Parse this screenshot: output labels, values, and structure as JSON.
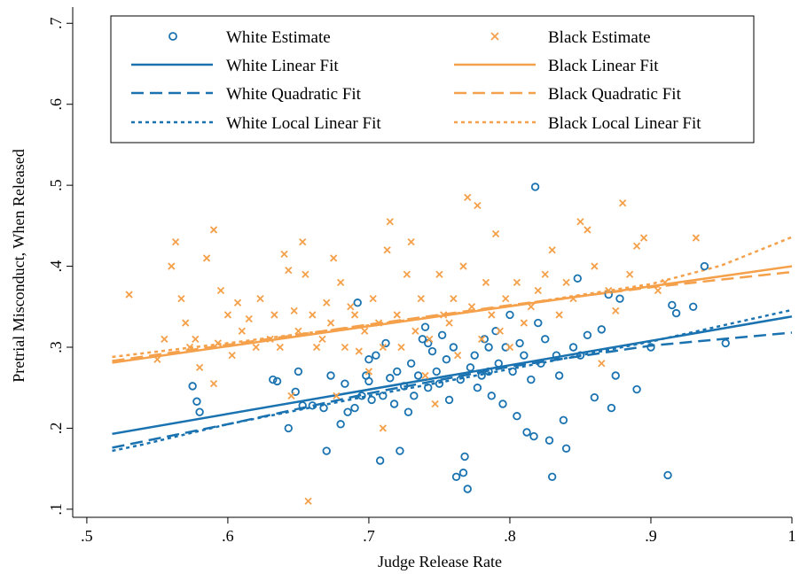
{
  "chart_data": {
    "type": "scatter",
    "title": "",
    "xlabel": "Judge Release Rate",
    "ylabel": "Pretrial Misconduct, When Released",
    "xlim": [
      0.49,
      1.0
    ],
    "ylim": [
      0.09,
      0.72
    ],
    "x_ticks": [
      0.5,
      0.6,
      0.7,
      0.8,
      0.9,
      1.0
    ],
    "x_tick_labels": [
      ".5",
      ".6",
      ".7",
      ".8",
      ".9",
      "1"
    ],
    "y_ticks": [
      0.1,
      0.2,
      0.3,
      0.4,
      0.5,
      0.6,
      0.7
    ],
    "y_tick_labels": [
      ".1",
      ".2",
      ".3",
      ".4",
      ".5",
      ".6",
      ".7"
    ],
    "grid": false,
    "legend_placement": "top",
    "colors": {
      "white": "#1a73b0",
      "black": "#f5a04a"
    },
    "legend": [
      "White Estimate",
      "Black Estimate",
      "White Linear Fit",
      "Black Linear Fit",
      "White Quadratic Fit",
      "Black Quadratic Fit",
      "White Local Linear Fit",
      "Black Local Linear Fit"
    ],
    "scatter_white": {
      "name": "White Estimate",
      "points": [
        [
          0.575,
          0.252
        ],
        [
          0.578,
          0.233
        ],
        [
          0.58,
          0.22
        ],
        [
          0.632,
          0.26
        ],
        [
          0.635,
          0.258
        ],
        [
          0.643,
          0.2
        ],
        [
          0.648,
          0.245
        ],
        [
          0.65,
          0.27
        ],
        [
          0.653,
          0.228
        ],
        [
          0.66,
          0.228
        ],
        [
          0.668,
          0.225
        ],
        [
          0.67,
          0.172
        ],
        [
          0.673,
          0.265
        ],
        [
          0.68,
          0.205
        ],
        [
          0.683,
          0.255
        ],
        [
          0.685,
          0.22
        ],
        [
          0.69,
          0.225
        ],
        [
          0.692,
          0.355
        ],
        [
          0.695,
          0.24
        ],
        [
          0.698,
          0.265
        ],
        [
          0.7,
          0.285
        ],
        [
          0.702,
          0.235
        ],
        [
          0.705,
          0.29
        ],
        [
          0.708,
          0.16
        ],
        [
          0.71,
          0.24
        ],
        [
          0.712,
          0.305
        ],
        [
          0.715,
          0.262
        ],
        [
          0.718,
          0.23
        ],
        [
          0.72,
          0.27
        ],
        [
          0.722,
          0.172
        ],
        [
          0.725,
          0.252
        ],
        [
          0.728,
          0.22
        ],
        [
          0.73,
          0.28
        ],
        [
          0.732,
          0.24
        ],
        [
          0.735,
          0.265
        ],
        [
          0.738,
          0.31
        ],
        [
          0.74,
          0.325
        ],
        [
          0.742,
          0.25
        ],
        [
          0.745,
          0.295
        ],
        [
          0.748,
          0.27
        ],
        [
          0.75,
          0.255
        ],
        [
          0.752,
          0.315
        ],
        [
          0.755,
          0.285
        ],
        [
          0.757,
          0.235
        ],
        [
          0.76,
          0.3
        ],
        [
          0.762,
          0.14
        ],
        [
          0.765,
          0.26
        ],
        [
          0.767,
          0.145
        ],
        [
          0.768,
          0.165
        ],
        [
          0.77,
          0.125
        ],
        [
          0.772,
          0.275
        ],
        [
          0.775,
          0.29
        ],
        [
          0.777,
          0.25
        ],
        [
          0.78,
          0.265
        ],
        [
          0.782,
          0.31
        ],
        [
          0.785,
          0.27
        ],
        [
          0.787,
          0.24
        ],
        [
          0.79,
          0.32
        ],
        [
          0.792,
          0.28
        ],
        [
          0.795,
          0.23
        ],
        [
          0.797,
          0.3
        ],
        [
          0.8,
          0.34
        ],
        [
          0.802,
          0.27
        ],
        [
          0.805,
          0.215
        ],
        [
          0.807,
          0.305
        ],
        [
          0.81,
          0.29
        ],
        [
          0.812,
          0.195
        ],
        [
          0.815,
          0.26
        ],
        [
          0.817,
          0.19
        ],
        [
          0.818,
          0.498
        ],
        [
          0.82,
          0.33
        ],
        [
          0.822,
          0.28
        ],
        [
          0.825,
          0.31
        ],
        [
          0.828,
          0.185
        ],
        [
          0.83,
          0.14
        ],
        [
          0.833,
          0.29
        ],
        [
          0.835,
          0.265
        ],
        [
          0.838,
          0.21
        ],
        [
          0.84,
          0.175
        ],
        [
          0.845,
          0.3
        ],
        [
          0.848,
          0.385
        ],
        [
          0.85,
          0.29
        ],
        [
          0.855,
          0.315
        ],
        [
          0.86,
          0.238
        ],
        [
          0.865,
          0.322
        ],
        [
          0.87,
          0.365
        ],
        [
          0.872,
          0.225
        ],
        [
          0.875,
          0.265
        ],
        [
          0.878,
          0.36
        ],
        [
          0.89,
          0.248
        ],
        [
          0.9,
          0.3
        ],
        [
          0.912,
          0.142
        ],
        [
          0.915,
          0.352
        ],
        [
          0.918,
          0.342
        ],
        [
          0.93,
          0.35
        ],
        [
          0.938,
          0.4
        ],
        [
          0.953,
          0.305
        ],
        [
          0.7,
          0.258
        ],
        [
          0.742,
          0.305
        ],
        [
          0.785,
          0.3
        ]
      ]
    },
    "scatter_black": {
      "name": "Black Estimate",
      "points": [
        [
          0.53,
          0.365
        ],
        [
          0.55,
          0.285
        ],
        [
          0.555,
          0.31
        ],
        [
          0.56,
          0.4
        ],
        [
          0.563,
          0.43
        ],
        [
          0.567,
          0.36
        ],
        [
          0.57,
          0.33
        ],
        [
          0.573,
          0.3
        ],
        [
          0.577,
          0.31
        ],
        [
          0.58,
          0.275
        ],
        [
          0.585,
          0.41
        ],
        [
          0.59,
          0.445
        ],
        [
          0.593,
          0.305
        ],
        [
          0.595,
          0.37
        ],
        [
          0.6,
          0.34
        ],
        [
          0.603,
          0.29
        ],
        [
          0.607,
          0.355
        ],
        [
          0.61,
          0.32
        ],
        [
          0.615,
          0.335
        ],
        [
          0.62,
          0.3
        ],
        [
          0.623,
          0.36
        ],
        [
          0.63,
          0.31
        ],
        [
          0.633,
          0.34
        ],
        [
          0.637,
          0.3
        ],
        [
          0.64,
          0.415
        ],
        [
          0.643,
          0.395
        ],
        [
          0.647,
          0.345
        ],
        [
          0.65,
          0.32
        ],
        [
          0.653,
          0.43
        ],
        [
          0.655,
          0.39
        ],
        [
          0.657,
          0.11
        ],
        [
          0.66,
          0.34
        ],
        [
          0.663,
          0.3
        ],
        [
          0.667,
          0.31
        ],
        [
          0.67,
          0.355
        ],
        [
          0.673,
          0.33
        ],
        [
          0.677,
          0.24
        ],
        [
          0.68,
          0.38
        ],
        [
          0.683,
          0.3
        ],
        [
          0.687,
          0.35
        ],
        [
          0.69,
          0.34
        ],
        [
          0.693,
          0.295
        ],
        [
          0.697,
          0.32
        ],
        [
          0.7,
          0.27
        ],
        [
          0.703,
          0.36
        ],
        [
          0.707,
          0.33
        ],
        [
          0.71,
          0.3
        ],
        [
          0.713,
          0.42
        ],
        [
          0.715,
          0.455
        ],
        [
          0.72,
          0.34
        ],
        [
          0.723,
          0.3
        ],
        [
          0.727,
          0.39
        ],
        [
          0.73,
          0.43
        ],
        [
          0.733,
          0.32
        ],
        [
          0.737,
          0.36
        ],
        [
          0.74,
          0.265
        ],
        [
          0.743,
          0.31
        ],
        [
          0.747,
          0.23
        ],
        [
          0.75,
          0.39
        ],
        [
          0.753,
          0.34
        ],
        [
          0.757,
          0.33
        ],
        [
          0.76,
          0.36
        ],
        [
          0.763,
          0.29
        ],
        [
          0.767,
          0.4
        ],
        [
          0.77,
          0.485
        ],
        [
          0.773,
          0.35
        ],
        [
          0.777,
          0.475
        ],
        [
          0.78,
          0.31
        ],
        [
          0.783,
          0.38
        ],
        [
          0.787,
          0.34
        ],
        [
          0.79,
          0.44
        ],
        [
          0.793,
          0.32
        ],
        [
          0.797,
          0.36
        ],
        [
          0.8,
          0.3
        ],
        [
          0.805,
          0.38
        ],
        [
          0.81,
          0.33
        ],
        [
          0.815,
          0.35
        ],
        [
          0.82,
          0.37
        ],
        [
          0.825,
          0.39
        ],
        [
          0.83,
          0.42
        ],
        [
          0.835,
          0.34
        ],
        [
          0.84,
          0.38
        ],
        [
          0.845,
          0.36
        ],
        [
          0.85,
          0.455
        ],
        [
          0.855,
          0.445
        ],
        [
          0.86,
          0.4
        ],
        [
          0.865,
          0.28
        ],
        [
          0.87,
          0.37
        ],
        [
          0.875,
          0.345
        ],
        [
          0.88,
          0.478
        ],
        [
          0.885,
          0.39
        ],
        [
          0.89,
          0.425
        ],
        [
          0.895,
          0.435
        ],
        [
          0.905,
          0.37
        ],
        [
          0.91,
          0.38
        ],
        [
          0.932,
          0.435
        ],
        [
          0.675,
          0.41
        ],
        [
          0.645,
          0.24
        ],
        [
          0.59,
          0.255
        ],
        [
          0.71,
          0.2
        ]
      ]
    },
    "fits": {
      "white_linear": {
        "name": "White Linear Fit",
        "x": [
          0.518,
          1.0
        ],
        "y": [
          0.193,
          0.338
        ]
      },
      "black_linear": {
        "name": "Black Linear Fit",
        "x": [
          0.518,
          1.0
        ],
        "y": [
          0.281,
          0.4
        ]
      },
      "white_quadratic": {
        "name": "White Quadratic Fit",
        "x": [
          0.518,
          0.6,
          0.7,
          0.8,
          0.9,
          1.0
        ],
        "y": [
          0.176,
          0.205,
          0.243,
          0.276,
          0.302,
          0.318
        ]
      },
      "black_quadratic": {
        "name": "Black Quadratic Fit",
        "x": [
          0.518,
          0.6,
          0.7,
          0.8,
          0.9,
          1.0
        ],
        "y": [
          0.283,
          0.303,
          0.328,
          0.352,
          0.374,
          0.393
        ]
      },
      "white_local": {
        "name": "White Local Linear Fit",
        "x": [
          0.518,
          0.54,
          0.6,
          0.7,
          0.8,
          0.9,
          1.0
        ],
        "y": [
          0.172,
          0.18,
          0.205,
          0.24,
          0.273,
          0.307,
          0.346
        ]
      },
      "black_local": {
        "name": "Black Local Linear Fit",
        "x": [
          0.518,
          0.6,
          0.7,
          0.8,
          0.9,
          0.95,
          1.0
        ],
        "y": [
          0.288,
          0.305,
          0.327,
          0.351,
          0.378,
          0.401,
          0.436
        ]
      }
    }
  }
}
